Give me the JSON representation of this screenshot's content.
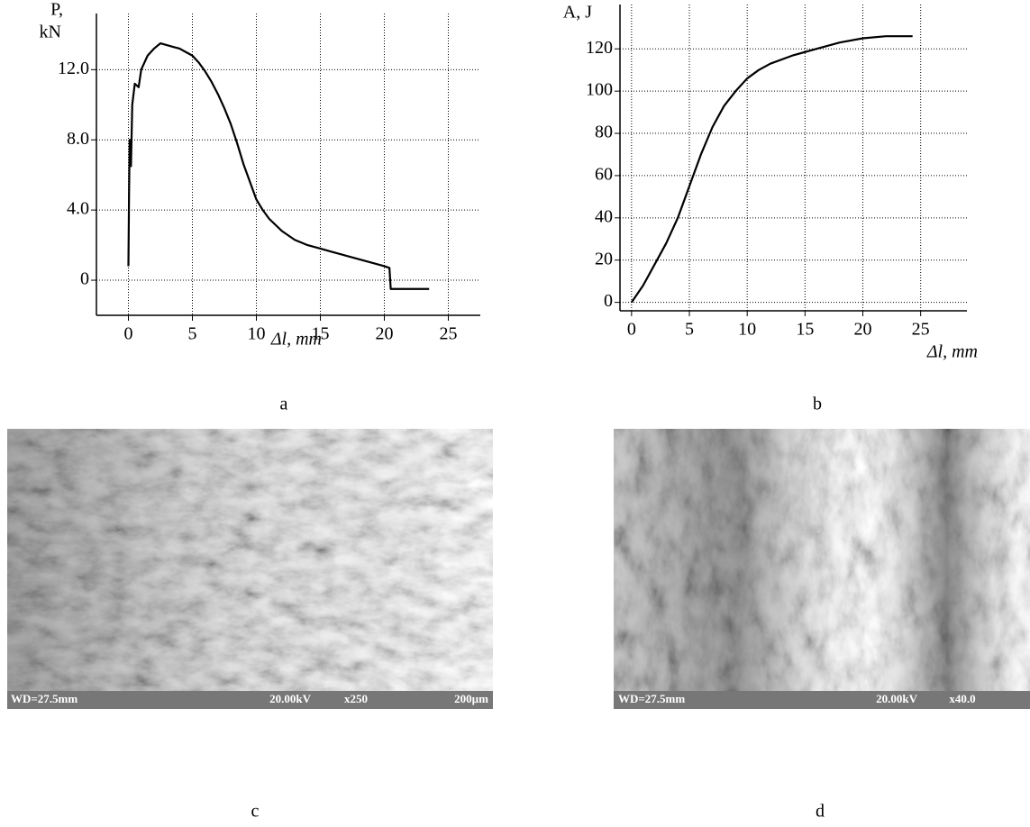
{
  "chart_data": [
    {
      "type": "line",
      "panel_label": "a",
      "ylabel": [
        "P,",
        "kN"
      ],
      "xlabel": "Δl, mm",
      "x": [
        0,
        0.05,
        0.1,
        0.2,
        0.3,
        0.5,
        0.8,
        1,
        1.5,
        2,
        2.5,
        3,
        3.5,
        4,
        4.5,
        5,
        5.5,
        6,
        6.5,
        7,
        7.5,
        8,
        8.5,
        9,
        9.5,
        10,
        10.5,
        11,
        12,
        13,
        14,
        15,
        16,
        17,
        18,
        19,
        20,
        20.4,
        20.5,
        21,
        22,
        23.5
      ],
      "values": [
        0.8,
        5,
        8,
        6.5,
        10,
        11.2,
        11,
        12,
        12.8,
        13.2,
        13.5,
        13.4,
        13.3,
        13.2,
        13,
        12.8,
        12.4,
        11.9,
        11.3,
        10.6,
        9.8,
        8.9,
        7.8,
        6.6,
        5.6,
        4.6,
        4,
        3.5,
        2.8,
        2.3,
        2,
        1.8,
        1.6,
        1.4,
        1.2,
        1,
        0.8,
        0.7,
        -0.5,
        -0.5,
        -0.5,
        -0.5
      ],
      "color": "#000000",
      "grid": true,
      "xlim": [
        -2.5,
        27.5
      ],
      "xticks": [
        0,
        5,
        10,
        15,
        20,
        25
      ],
      "ylim": [
        -2,
        15.2
      ],
      "yticks": [
        0,
        {
          "value": 4,
          "label": "4.0"
        },
        {
          "value": 8,
          "label": "8.0"
        },
        {
          "value": 12,
          "label": "12.0"
        }
      ]
    },
    {
      "type": "line",
      "panel_label": "b",
      "ylabel": [
        "A, J"
      ],
      "xlabel": "Δl, mm",
      "x": [
        0,
        1,
        2,
        3,
        4,
        5,
        6,
        7,
        8,
        9,
        10,
        11,
        12,
        14,
        16,
        18,
        20,
        22,
        24.3
      ],
      "values": [
        0,
        8,
        18,
        28,
        40,
        55,
        70,
        83,
        93,
        100,
        106,
        110,
        113,
        117,
        120,
        123,
        125,
        126,
        126
      ],
      "color": "#000000",
      "grid": true,
      "xlim": [
        -1,
        29
      ],
      "xticks": [
        0,
        5,
        10,
        15,
        20,
        25
      ],
      "ylim": [
        -4,
        141
      ],
      "yticks": [
        0,
        20,
        40,
        60,
        80,
        100,
        120
      ]
    }
  ],
  "images": [
    {
      "caption": "c",
      "info": [
        "WD=27.5mm",
        "20.00kV",
        "x250",
        "200µm"
      ]
    },
    {
      "caption": "d",
      "info": [
        "WD=27.5mm",
        "20.00kV",
        "x40.0"
      ]
    }
  ]
}
